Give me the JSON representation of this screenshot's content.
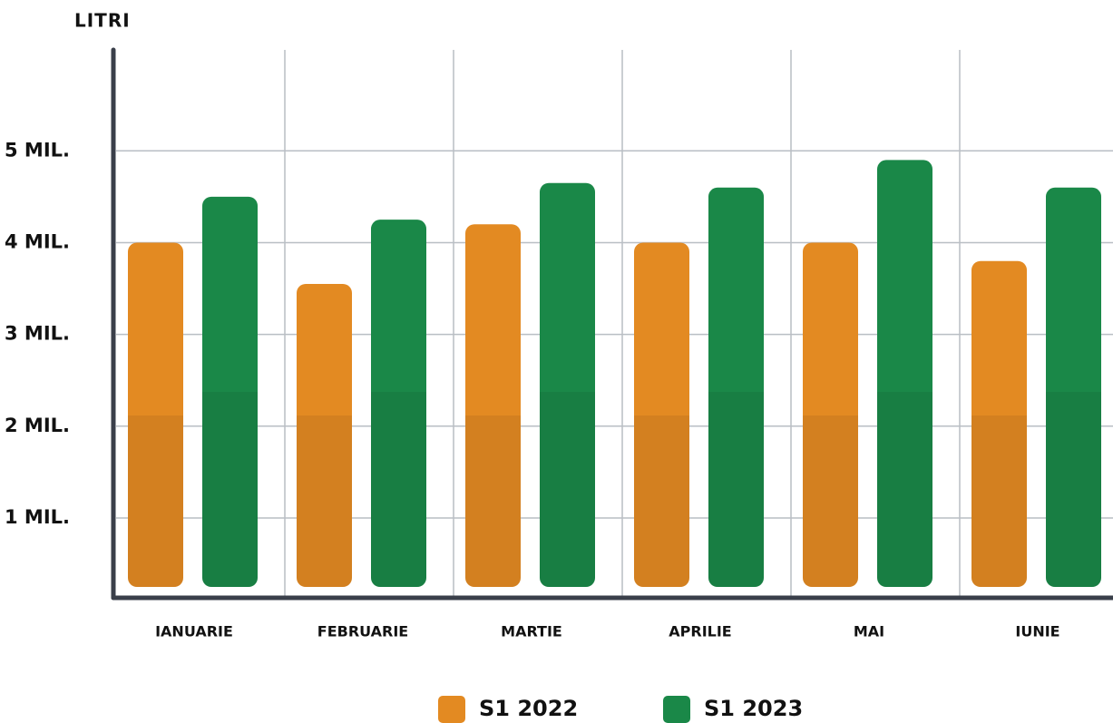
{
  "chart_data": {
    "type": "bar",
    "y_label": "LITRI",
    "categories": [
      "IANUARIE",
      "FEBRUARIE",
      "MARTIE",
      "APRILIE",
      "MAI",
      "IUNIE"
    ],
    "series": [
      {
        "name": "S1 2022",
        "color": "#e38a22",
        "values": [
          4000000,
          3550000,
          4200000,
          4000000,
          4000000,
          3800000
        ]
      },
      {
        "name": "S1 2023",
        "color": "#1a8848",
        "values": [
          4500000,
          4250000,
          4650000,
          4600000,
          4900000,
          4600000
        ]
      }
    ],
    "ylim": [
      130000,
      6100000
    ],
    "yticks": [
      {
        "value": 1000000,
        "label": "1 MIL."
      },
      {
        "value": 2000000,
        "label": "2 MIL."
      },
      {
        "value": 3000000,
        "label": "3 MIL."
      },
      {
        "value": 4000000,
        "label": "4 MIL."
      },
      {
        "value": 5000000,
        "label": "5 MIL."
      }
    ],
    "grid": true
  }
}
